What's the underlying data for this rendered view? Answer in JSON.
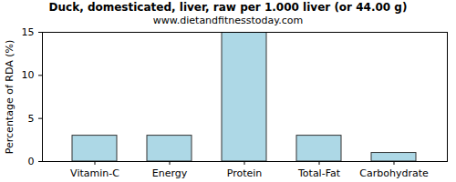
{
  "chart_data": {
    "type": "bar",
    "title": "Duck, domesticated, liver, raw per 1.000 liver (or 44.00 g)",
    "subtitle": "www.dietandfitnesstoday.com",
    "y_label": "Percentage of RDA (%)",
    "categories": [
      "Vitamin-C",
      "Energy",
      "Protein",
      "Total-Fat",
      "Carbohydrate"
    ],
    "values": [
      3,
      3,
      15,
      3,
      1
    ],
    "color": "#add8e6",
    "ylim": [
      0,
      15
    ],
    "yticks": [
      0,
      5,
      10,
      15
    ],
    "grid": false
  }
}
